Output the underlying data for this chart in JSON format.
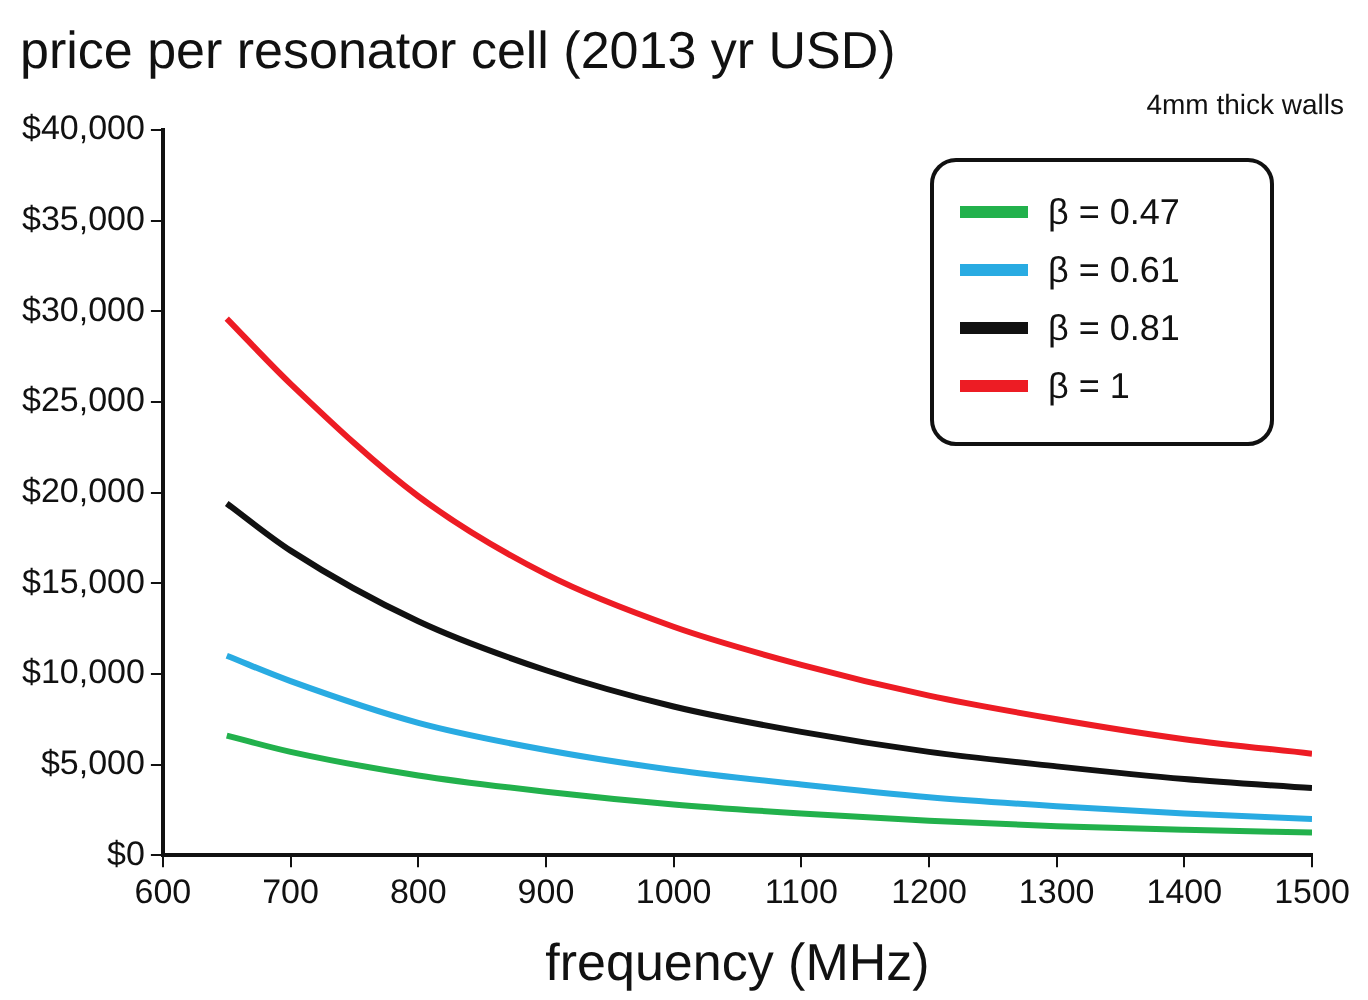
{
  "chart_data": {
    "type": "line",
    "title": "price per resonator cell (2013 yr USD)",
    "xlabel": "frequency (MHz)",
    "annotations": [
      "4mm thick walls"
    ],
    "x": [
      650,
      700,
      800,
      900,
      1000,
      1100,
      1200,
      1300,
      1400,
      1500
    ],
    "series": [
      {
        "name": "β = 0.47",
        "color": "#22b14c",
        "values": [
          6600,
          5700,
          4400,
          3500,
          2800,
          2300,
          1900,
          1600,
          1400,
          1250
        ]
      },
      {
        "name": "β = 0.61",
        "color": "#29abe2",
        "values": [
          11000,
          9600,
          7300,
          5800,
          4700,
          3900,
          3200,
          2700,
          2300,
          2000
        ]
      },
      {
        "name": "β = 0.81",
        "color": "#111111",
        "values": [
          19400,
          16800,
          12900,
          10200,
          8200,
          6800,
          5700,
          4900,
          4200,
          3700
        ]
      },
      {
        "name": "β = 1",
        "color": "#ed1c24",
        "values": [
          29600,
          26000,
          19800,
          15500,
          12600,
          10500,
          8800,
          7500,
          6400,
          5600
        ]
      }
    ],
    "xlim": [
      600,
      1500
    ],
    "xticks": [
      600,
      700,
      800,
      900,
      1000,
      1100,
      1200,
      1300,
      1400,
      1500
    ],
    "ylim": [
      0,
      40000
    ],
    "yticks": [
      {
        "value": 0,
        "label": "$0"
      },
      {
        "value": 5000,
        "label": "$5,000"
      },
      {
        "value": 10000,
        "label": "$10,000"
      },
      {
        "value": 15000,
        "label": "$15,000"
      },
      {
        "value": 20000,
        "label": "$20,000"
      },
      {
        "value": 25000,
        "label": "$25,000"
      },
      {
        "value": 30000,
        "label": "$30,000"
      },
      {
        "value": 35000,
        "label": "$35,000"
      },
      {
        "value": 40000,
        "label": "$40,000"
      }
    ],
    "grid": false,
    "legend": "top right",
    "marker": "none",
    "line_style": "solid"
  }
}
